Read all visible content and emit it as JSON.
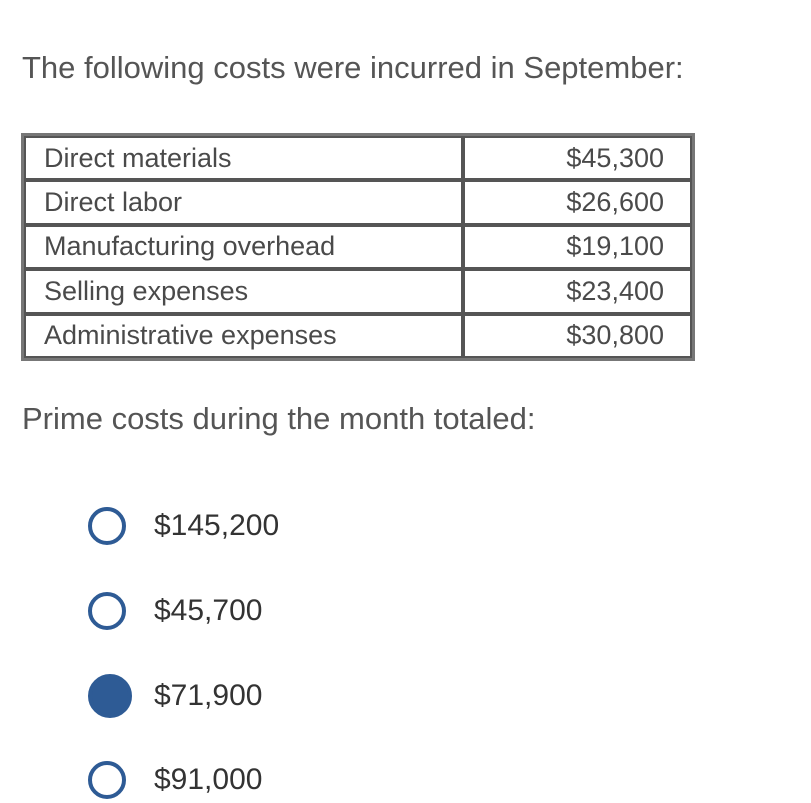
{
  "question": {
    "intro": "The following costs were incurred in September:",
    "prompt": "Prime costs during the month totaled:"
  },
  "costs": [
    {
      "label": "Direct materials",
      "amount": "$45,300"
    },
    {
      "label": "Direct labor",
      "amount": "$26,600"
    },
    {
      "label": "Manufacturing overhead",
      "amount": "$19,100"
    },
    {
      "label": "Selling expenses",
      "amount": "$23,400"
    },
    {
      "label": "Administrative expenses",
      "amount": "$30,800"
    }
  ],
  "options": [
    {
      "label": "$145,200",
      "selected": false
    },
    {
      "label": "$45,700",
      "selected": false
    },
    {
      "label": "$71,900",
      "selected": true
    },
    {
      "label": "$91,000",
      "selected": false
    }
  ],
  "colors": {
    "radio_accent": "#2e5b95",
    "text": "#555555"
  }
}
